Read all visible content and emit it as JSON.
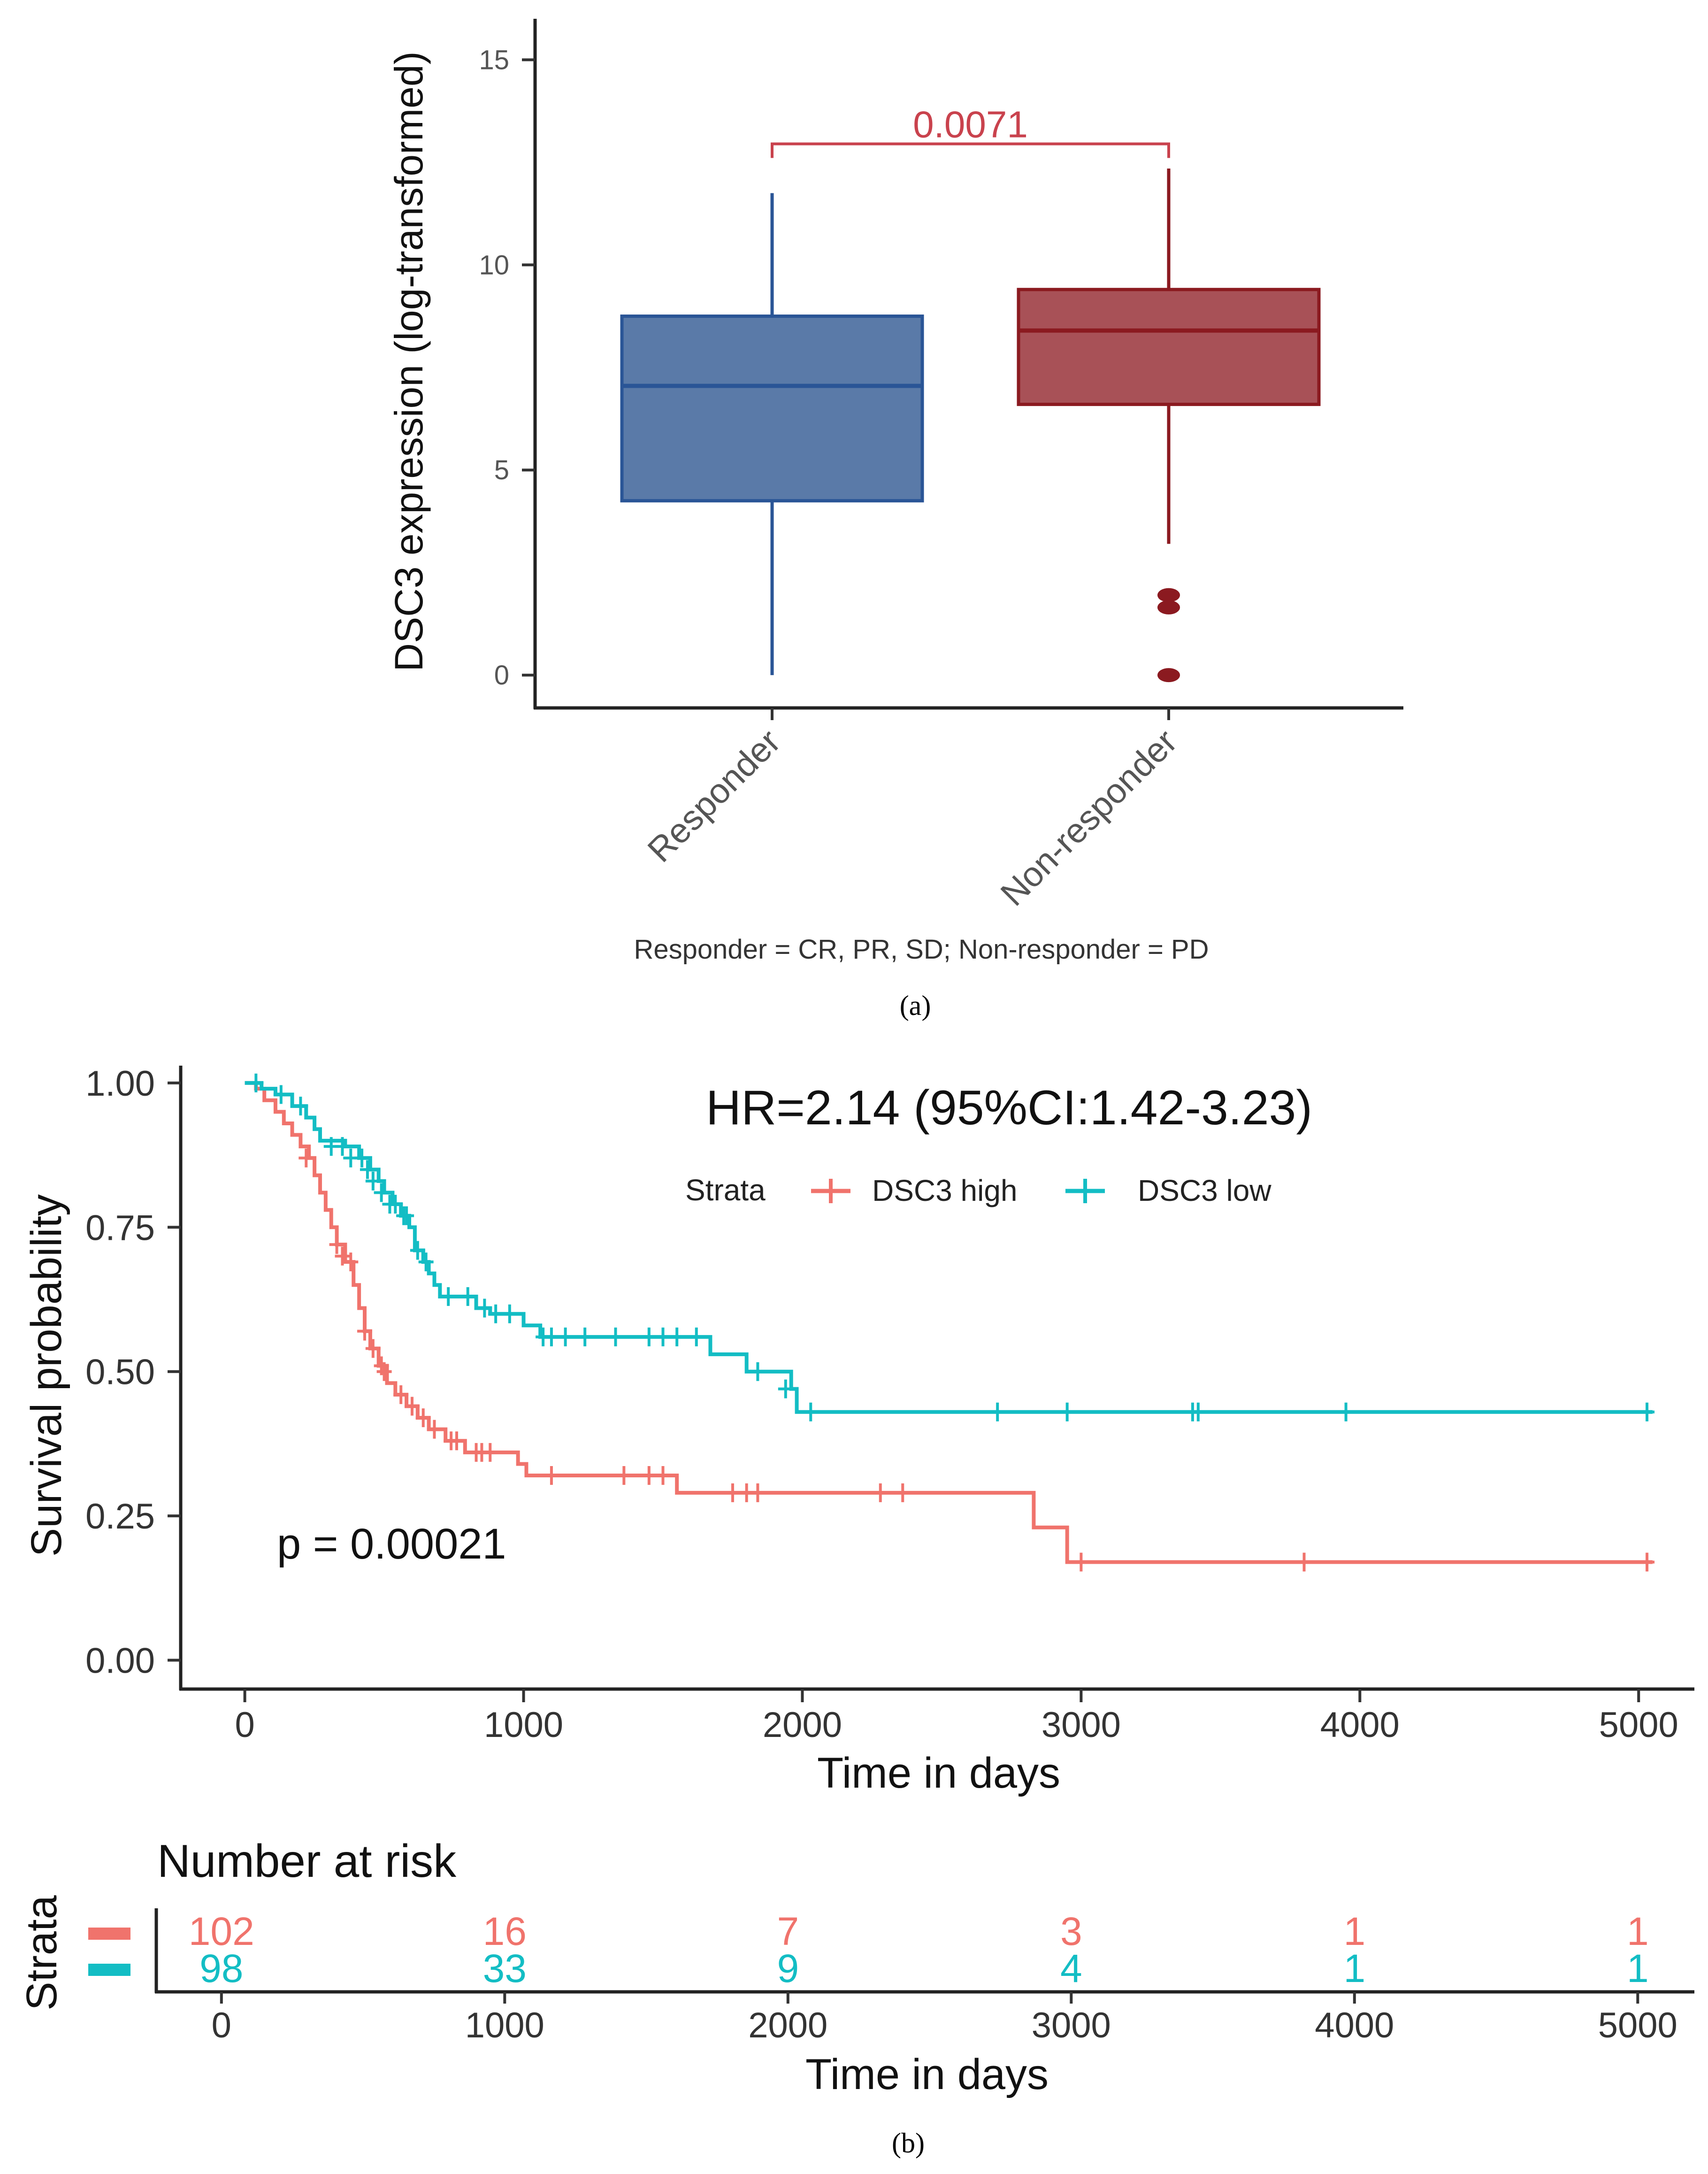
{
  "panel_a_caption": "(a)",
  "panel_b_caption": "(b)",
  "chart_data": [
    {
      "type": "box",
      "ylabel": "DSC3 expression (log-transformed)",
      "xlabel": "Responder = CR, PR, SD; Non-responder = PD",
      "ylim": [
        -0.8,
        16
      ],
      "yticks": [
        0,
        5,
        10,
        15
      ],
      "categories": [
        "Responder",
        "Non-responder"
      ],
      "boxes": [
        {
          "name": "Responder",
          "whisker_low": 0,
          "q1": 4.25,
          "median": 7.05,
          "q3": 8.75,
          "whisker_high": 11.75,
          "outliers": [],
          "fill": "#5a7aa8",
          "stroke": "#2a5596"
        },
        {
          "name": "Non-responder",
          "whisker_low": 3.2,
          "q1": 6.6,
          "median": 8.4,
          "q3": 9.4,
          "whisker_high": 12.35,
          "outliers": [
            0,
            1.65,
            1.95
          ],
          "fill": "#a85157",
          "stroke": "#8b1a20"
        }
      ],
      "comparison": {
        "label": "0.0071",
        "y": 12.95,
        "color": "#c9424d"
      }
    },
    {
      "type": "line",
      "subtype": "kaplan-meier",
      "title": "HR=2.14 (95%CI:1.42-3.23)",
      "pvalue_label": "p = 0.00021",
      "xlabel": "Time in days",
      "ylabel": "Survival probability",
      "xlim": [
        -230,
        5200
      ],
      "ylim": [
        -0.05,
        1.03
      ],
      "xticks": [
        0,
        1000,
        2000,
        3000,
        4000,
        5000
      ],
      "yticks": [
        "0.00",
        "0.25",
        "0.50",
        "0.75",
        "1.00"
      ],
      "legend": {
        "title": "Strata",
        "position": "top"
      },
      "series": [
        {
          "name": "DSC3 high",
          "color": "#f0736c",
          "steps": [
            [
              0,
              1.0
            ],
            [
              40,
              0.99
            ],
            [
              70,
              0.97
            ],
            [
              110,
              0.95
            ],
            [
              140,
              0.93
            ],
            [
              170,
              0.91
            ],
            [
              200,
              0.89
            ],
            [
              230,
              0.87
            ],
            [
              250,
              0.84
            ],
            [
              270,
              0.81
            ],
            [
              290,
              0.78
            ],
            [
              310,
              0.75
            ],
            [
              330,
              0.72
            ],
            [
              360,
              0.69
            ],
            [
              390,
              0.65
            ],
            [
              410,
              0.61
            ],
            [
              430,
              0.57
            ],
            [
              450,
              0.54
            ],
            [
              480,
              0.51
            ],
            [
              510,
              0.48
            ],
            [
              540,
              0.46
            ],
            [
              580,
              0.44
            ],
            [
              620,
              0.42
            ],
            [
              660,
              0.4
            ],
            [
              720,
              0.38
            ],
            [
              790,
              0.36
            ],
            [
              980,
              0.34
            ],
            [
              1010,
              0.32
            ],
            [
              1550,
              0.29
            ],
            [
              2830,
              0.23
            ],
            [
              2950,
              0.17
            ],
            [
              5050,
              0.17
            ]
          ],
          "censors": [
            [
              220,
              0.87
            ],
            [
              330,
              0.72
            ],
            [
              350,
              0.7
            ],
            [
              380,
              0.69
            ],
            [
              430,
              0.57
            ],
            [
              460,
              0.54
            ],
            [
              490,
              0.51
            ],
            [
              500,
              0.5
            ],
            [
              560,
              0.46
            ],
            [
              600,
              0.44
            ],
            [
              640,
              0.42
            ],
            [
              680,
              0.4
            ],
            [
              740,
              0.38
            ],
            [
              760,
              0.38
            ],
            [
              830,
              0.36
            ],
            [
              850,
              0.36
            ],
            [
              880,
              0.36
            ],
            [
              1100,
              0.32
            ],
            [
              1360,
              0.32
            ],
            [
              1450,
              0.32
            ],
            [
              1500,
              0.32
            ],
            [
              1750,
              0.29
            ],
            [
              1800,
              0.29
            ],
            [
              1840,
              0.29
            ],
            [
              2280,
              0.29
            ],
            [
              2360,
              0.29
            ],
            [
              3000,
              0.17
            ],
            [
              3800,
              0.17
            ],
            [
              5030,
              0.17
            ]
          ]
        },
        {
          "name": "DSC3 low",
          "color": "#13bdc4",
          "steps": [
            [
              0,
              1.0
            ],
            [
              60,
              0.99
            ],
            [
              110,
              0.98
            ],
            [
              170,
              0.96
            ],
            [
              220,
              0.94
            ],
            [
              250,
              0.92
            ],
            [
              270,
              0.9
            ],
            [
              360,
              0.89
            ],
            [
              410,
              0.87
            ],
            [
              450,
              0.85
            ],
            [
              480,
              0.83
            ],
            [
              500,
              0.81
            ],
            [
              530,
              0.79
            ],
            [
              560,
              0.77
            ],
            [
              590,
              0.75
            ],
            [
              610,
              0.71
            ],
            [
              640,
              0.69
            ],
            [
              660,
              0.67
            ],
            [
              680,
              0.65
            ],
            [
              700,
              0.63
            ],
            [
              830,
              0.61
            ],
            [
              880,
              0.6
            ],
            [
              1000,
              0.58
            ],
            [
              1060,
              0.56
            ],
            [
              1670,
              0.53
            ],
            [
              1800,
              0.5
            ],
            [
              1960,
              0.47
            ],
            [
              1980,
              0.43
            ],
            [
              5050,
              0.43
            ]
          ],
          "censors": [
            [
              40,
              1.0
            ],
            [
              130,
              0.98
            ],
            [
              200,
              0.96
            ],
            [
              310,
              0.89
            ],
            [
              350,
              0.89
            ],
            [
              380,
              0.87
            ],
            [
              420,
              0.87
            ],
            [
              440,
              0.85
            ],
            [
              460,
              0.83
            ],
            [
              490,
              0.81
            ],
            [
              520,
              0.79
            ],
            [
              540,
              0.79
            ],
            [
              570,
              0.77
            ],
            [
              580,
              0.77
            ],
            [
              620,
              0.71
            ],
            [
              650,
              0.69
            ],
            [
              730,
              0.63
            ],
            [
              800,
              0.63
            ],
            [
              860,
              0.61
            ],
            [
              900,
              0.6
            ],
            [
              950,
              0.6
            ],
            [
              1070,
              0.56
            ],
            [
              1100,
              0.56
            ],
            [
              1150,
              0.56
            ],
            [
              1220,
              0.56
            ],
            [
              1330,
              0.56
            ],
            [
              1450,
              0.56
            ],
            [
              1500,
              0.56
            ],
            [
              1550,
              0.56
            ],
            [
              1620,
              0.56
            ],
            [
              1840,
              0.5
            ],
            [
              1940,
              0.47
            ],
            [
              2030,
              0.43
            ],
            [
              2700,
              0.43
            ],
            [
              2950,
              0.43
            ],
            [
              3400,
              0.43
            ],
            [
              3420,
              0.43
            ],
            [
              3950,
              0.43
            ],
            [
              5030,
              0.43
            ]
          ]
        }
      ]
    },
    {
      "type": "table",
      "title": "Number at risk",
      "xlabel": "Time in days",
      "ylabel": "Strata",
      "xlim": [
        -230,
        5200
      ],
      "xticks": [
        0,
        1000,
        2000,
        3000,
        4000,
        5000
      ],
      "rows": [
        {
          "name": "DSC3 high",
          "color": "#f0736c",
          "values": [
            "102",
            "16",
            "7",
            "3",
            "1",
            "1"
          ]
        },
        {
          "name": "DSC3 low",
          "color": "#13bdc4",
          "values": [
            "98",
            "33",
            "9",
            "4",
            "1",
            "1"
          ]
        }
      ]
    }
  ]
}
